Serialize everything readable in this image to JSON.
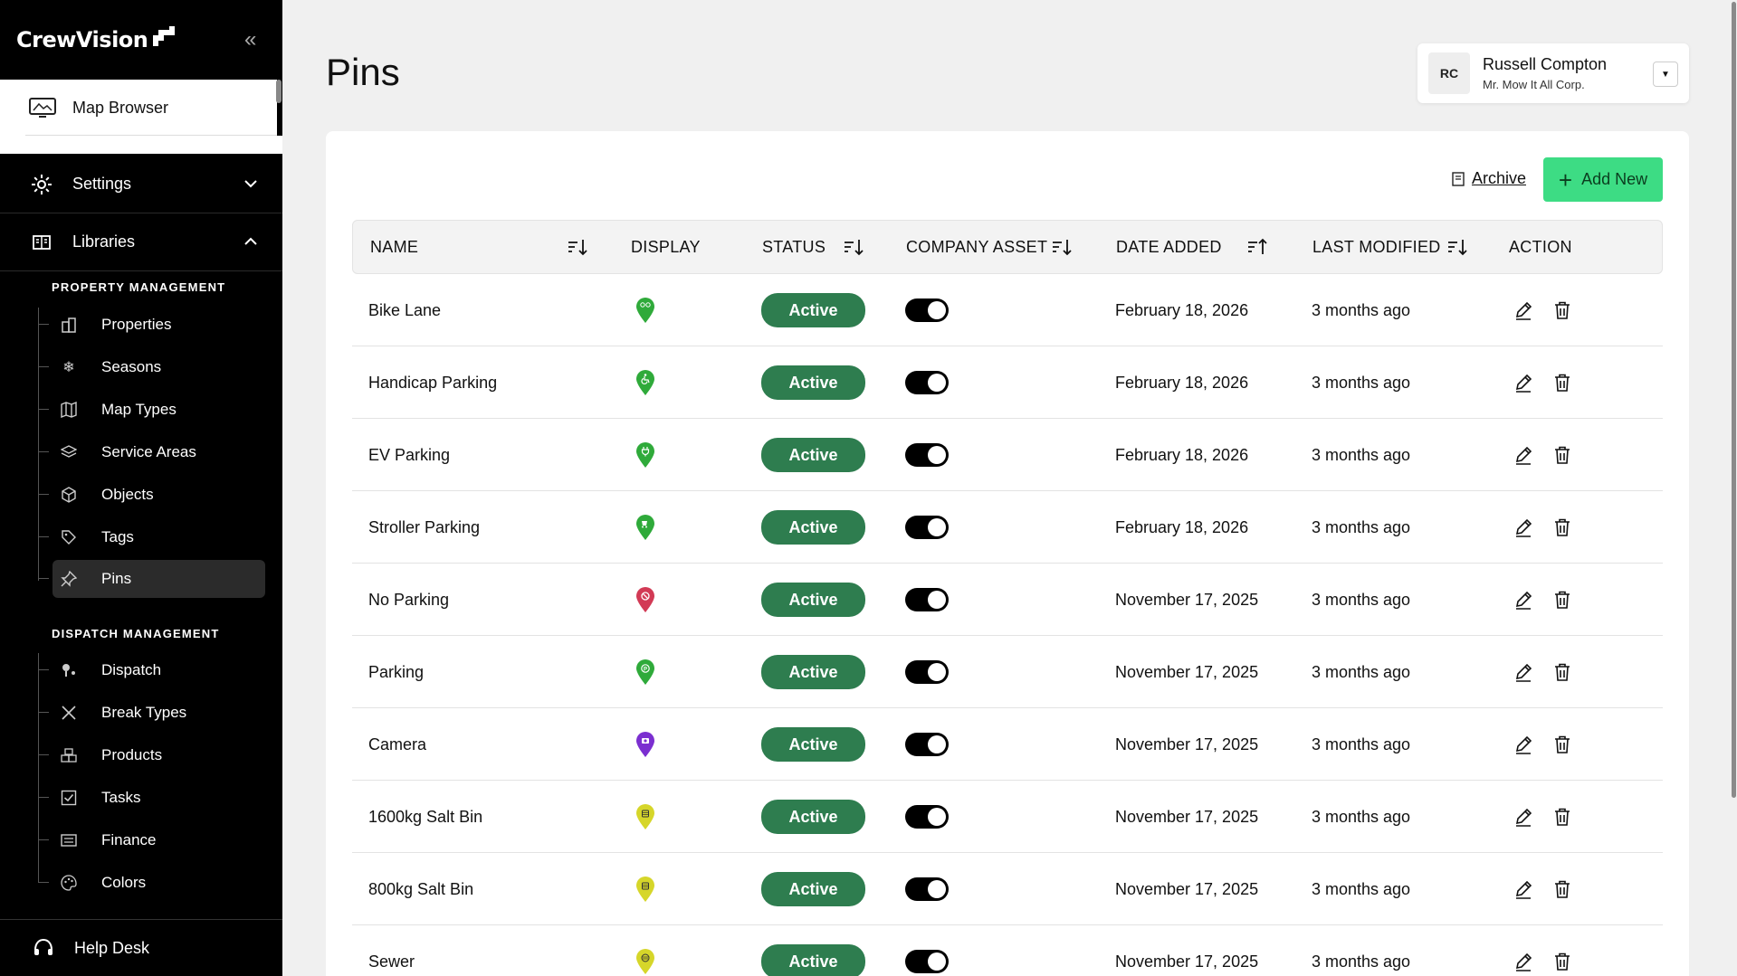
{
  "sidebar": {
    "brand": "CrewVision",
    "map_browser": "Map Browser",
    "settings": "Settings",
    "libraries": "Libraries",
    "property_group": "PROPERTY MANAGEMENT",
    "property_items": [
      "Properties",
      "Seasons",
      "Map Types",
      "Service Areas",
      "Objects",
      "Tags",
      "Pins"
    ],
    "dispatch_group": "DISPATCH MANAGEMENT",
    "dispatch_items": [
      "Dispatch",
      "Break Types",
      "Products",
      "Tasks",
      "Finance",
      "Colors"
    ],
    "help_desk": "Help Desk",
    "active_item": "Pins"
  },
  "header": {
    "title": "Pins"
  },
  "user": {
    "initials": "RC",
    "name": "Russell Compton",
    "org": "Mr. Mow It All Corp."
  },
  "toolbar": {
    "archive": "Archive",
    "add_new": "Add New"
  },
  "table": {
    "columns": [
      "NAME",
      "DISPLAY",
      "STATUS",
      "COMPANY ASSET",
      "DATE ADDED",
      "LAST MODIFIED",
      "ACTION"
    ],
    "rows": [
      {
        "name": "Bike Lane",
        "icon": "bike-pin-icon",
        "color": "#2faa3a",
        "status": "Active",
        "asset": true,
        "added": "February 18, 2026",
        "modified": "3 months ago"
      },
      {
        "name": "Handicap Parking",
        "icon": "accessible-pin-icon",
        "color": "#2faa3a",
        "status": "Active",
        "asset": true,
        "added": "February 18, 2026",
        "modified": "3 months ago"
      },
      {
        "name": "EV Parking",
        "icon": "ev-plug-pin-icon",
        "color": "#2faa3a",
        "status": "Active",
        "asset": true,
        "added": "February 18, 2026",
        "modified": "3 months ago"
      },
      {
        "name": "Stroller Parking",
        "icon": "stroller-pin-icon",
        "color": "#2faa3a",
        "status": "Active",
        "asset": true,
        "added": "February 18, 2026",
        "modified": "3 months ago"
      },
      {
        "name": "No Parking",
        "icon": "no-parking-pin-icon",
        "color": "#d23a55",
        "status": "Active",
        "asset": true,
        "added": "November 17, 2025",
        "modified": "3 months ago"
      },
      {
        "name": "Parking",
        "icon": "parking-pin-icon",
        "color": "#2faa3a",
        "status": "Active",
        "asset": true,
        "added": "November 17, 2025",
        "modified": "3 months ago"
      },
      {
        "name": "Camera",
        "icon": "camera-pin-icon",
        "color": "#7b2fd0",
        "status": "Active",
        "asset": true,
        "added": "November 17, 2025",
        "modified": "3 months ago"
      },
      {
        "name": "1600kg Salt Bin",
        "icon": "salt-bin-pin-icon",
        "color": "#d6d62a",
        "status": "Active",
        "asset": true,
        "added": "November 17, 2025",
        "modified": "3 months ago"
      },
      {
        "name": "800kg Salt Bin",
        "icon": "salt-bin-pin-icon",
        "color": "#d6d62a",
        "status": "Active",
        "asset": true,
        "added": "November 17, 2025",
        "modified": "3 months ago"
      },
      {
        "name": "Sewer",
        "icon": "sewer-pin-icon",
        "color": "#d6d62a",
        "status": "Active",
        "asset": true,
        "added": "November 17, 2025",
        "modified": "3 months ago"
      }
    ]
  },
  "colors": {
    "accent": "#3ddc84",
    "status_active": "#2e7d4f",
    "sidebar_bg": "#000000"
  }
}
